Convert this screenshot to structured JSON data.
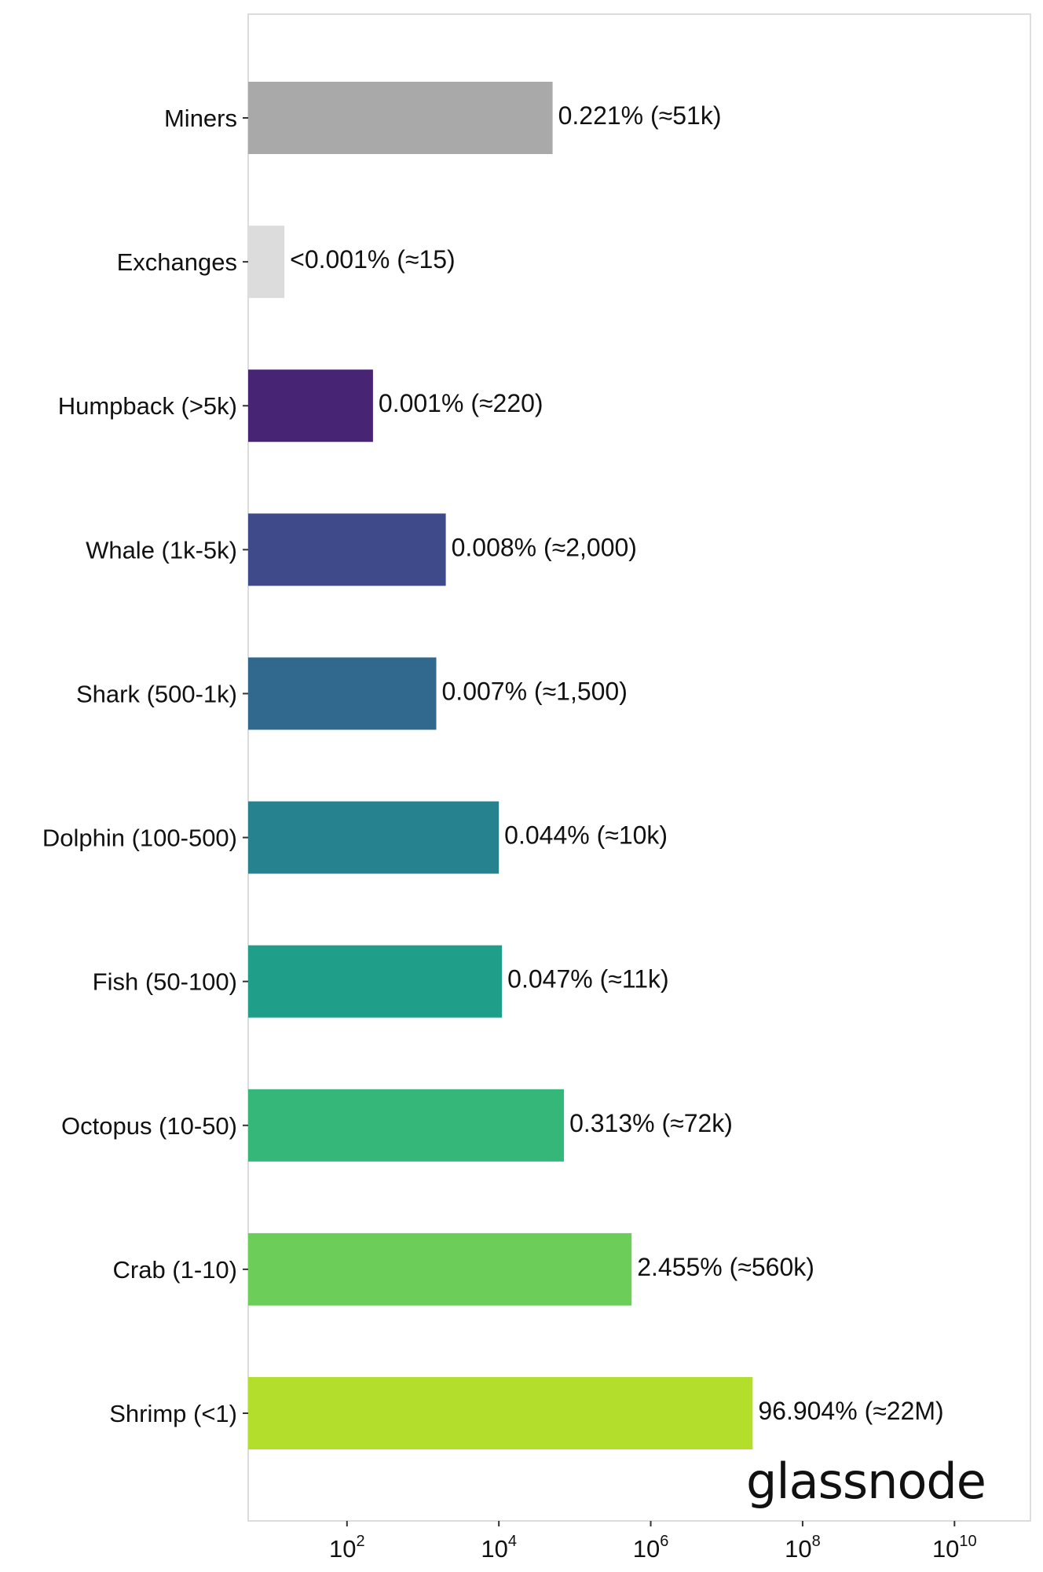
{
  "chart_data": {
    "type": "bar",
    "orientation": "horizontal",
    "x_scale": "log",
    "xlim": [
      5,
      100000000000.0
    ],
    "grid": false,
    "legend": "none",
    "categories": [
      "Miners",
      "Exchanges",
      "Humpback (>5k)",
      "Whale (1k-5k)",
      "Shark (500-1k)",
      "Dolphin (100-500)",
      "Fish (50-100)",
      "Octopus (10-50)",
      "Crab (1-10)",
      "Shrimp (<1)"
    ],
    "values": [
      51000,
      15,
      220,
      2000,
      1500,
      10000,
      11000,
      72000,
      560000,
      22000000
    ],
    "labels": [
      "0.221% (≈51k)",
      "<0.001% (≈15)",
      "0.001% (≈220)",
      "0.008% (≈2,000)",
      "0.007% (≈1,500)",
      "0.044% (≈10k)",
      "0.047% (≈11k)",
      "0.313% (≈72k)",
      "2.455% (≈560k)",
      "96.904% (≈22M)"
    ],
    "colors": [
      "#a9a9a9",
      "#dcdcdc",
      "#482475",
      "#3e4a89",
      "#30688e",
      "#26828e",
      "#1f9e89",
      "#35b779",
      "#6dcd59",
      "#b4de2c"
    ],
    "x_ticks": [
      {
        "value": 100,
        "base": "10",
        "exp": "2"
      },
      {
        "value": 10000,
        "base": "10",
        "exp": "4"
      },
      {
        "value": 1000000,
        "base": "10",
        "exp": "6"
      },
      {
        "value": 100000000,
        "base": "10",
        "exp": "8"
      },
      {
        "value": 10000000000,
        "base": "10",
        "exp": "10"
      }
    ],
    "xlabel": "",
    "ylabel": "",
    "title": ""
  },
  "watermark": "glassnode"
}
